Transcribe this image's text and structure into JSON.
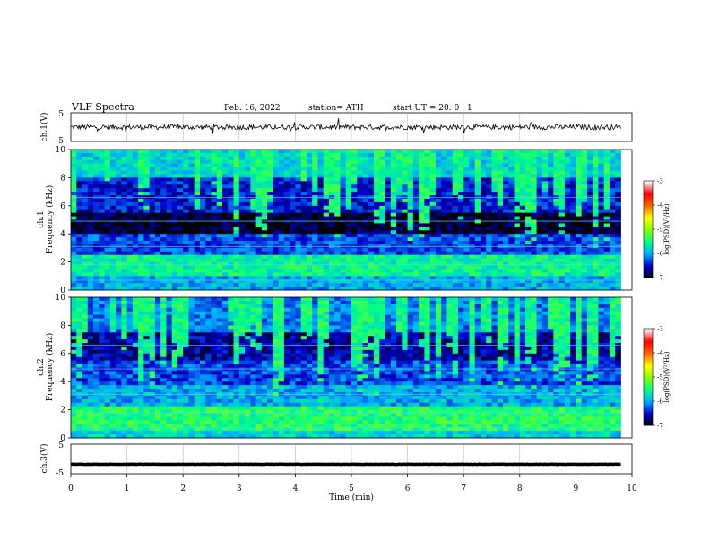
{
  "header": {
    "title": "VLF  Spectra",
    "date": "Feb. 16, 2022",
    "station": "station= ATH",
    "start_ut": "start  UT  =    20: 0   : 1"
  },
  "chart_data": [
    {
      "type": "line",
      "panel": "ch1-waveform",
      "ylabel": "ch.1(V)",
      "ylim": [
        -5,
        5
      ],
      "yticks": [
        "5",
        "-5"
      ],
      "xlim": [
        0,
        10
      ],
      "data_extent": [
        0,
        9.8
      ],
      "level": 0,
      "noise_amplitude": 0.9,
      "line_color": "#000000"
    },
    {
      "type": "heatmap",
      "panel": "ch1-spectrogram",
      "ylabel": "ch.1\nFrequency  (kHz)",
      "ylim": [
        0,
        10
      ],
      "yticks": [
        "0",
        "2",
        "4",
        "6",
        "8",
        "10"
      ],
      "xlim": [
        0,
        10
      ],
      "data_extent": [
        0,
        9.8
      ],
      "colorbar": {
        "label": "log(PSD)(V²/Hz)",
        "range": [
          -7,
          -3
        ],
        "ticks": [
          "-3",
          "-4",
          "-5",
          "-6",
          "-7"
        ],
        "colors": [
          "#000000",
          "#0000cc",
          "#00aaff",
          "#00ff88",
          "#88ff00",
          "#ffff00",
          "#ff6600",
          "#ff0000",
          "#ffffff"
        ]
      }
    },
    {
      "type": "heatmap",
      "panel": "ch2-spectrogram",
      "ylabel": "ch.2\nFrequency  (kHz)",
      "ylim": [
        0,
        10
      ],
      "yticks": [
        "0",
        "2",
        "4",
        "6",
        "8",
        "10"
      ],
      "xlim": [
        0,
        10
      ],
      "data_extent": [
        0,
        9.8
      ],
      "colorbar": {
        "label": "log(PSD)(V²/Hz)",
        "range": [
          -7,
          -3
        ],
        "ticks": [
          "-3",
          "-4",
          "-5",
          "-6",
          "-7"
        ],
        "colors": [
          "#000000",
          "#0000cc",
          "#00aaff",
          "#00ff88",
          "#88ff00",
          "#ffff00",
          "#ff6600",
          "#ff0000",
          "#ffffff"
        ]
      }
    },
    {
      "type": "line",
      "panel": "ch3-waveform",
      "ylabel": "ch.3(V)",
      "ylim": [
        -5,
        5
      ],
      "yticks": [
        "5",
        "-5"
      ],
      "xlim": [
        0,
        10
      ],
      "data_extent": [
        0,
        9.8
      ],
      "level": -1.8,
      "noise_amplitude": 0.05,
      "line_color": "#000000"
    }
  ],
  "x_axis": {
    "label": "Time  (min)",
    "ticks": [
      "0",
      "1",
      "2",
      "3",
      "4",
      "5",
      "6",
      "7",
      "8",
      "9",
      "10"
    ]
  }
}
